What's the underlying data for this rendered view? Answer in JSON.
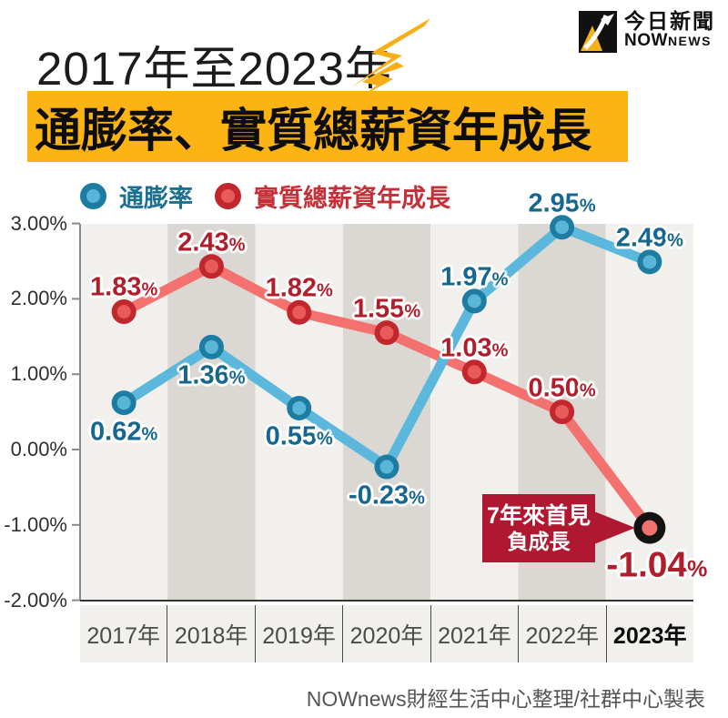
{
  "header": {
    "period_title": "2017年至2023年",
    "main_title": "通膨率、實質總薪資年成長",
    "highlight_color": "#FBB414",
    "lightning_color": "#F9AE17",
    "logo": {
      "cn": "今日新聞",
      "en_main": "NOW",
      "en_sub": "NEWS"
    }
  },
  "legend": {
    "items": [
      {
        "label": "通膨率",
        "ring": "#1D7CA2",
        "fill": "#5AB5D6",
        "text_color": "#1B7090"
      },
      {
        "label": "實質總薪資年成長",
        "ring": "#C2272E",
        "fill": "#E85B59",
        "text_color": "#C53038"
      }
    ]
  },
  "chart_data": {
    "type": "line",
    "title": "2017年至2023年 通膨率、實質總薪資年成長",
    "categories": [
      "2017年",
      "2018年",
      "2019年",
      "2020年",
      "2021年",
      "2022年",
      "2023年"
    ],
    "last_category_bold": true,
    "series": [
      {
        "name": "實質總薪資年成長",
        "values": [
          1.83,
          2.43,
          1.82,
          1.55,
          1.03,
          0.5,
          -1.04
        ],
        "labels": [
          "1.83%",
          "2.43%",
          "1.82%",
          "1.55%",
          "1.03%",
          "0.50%",
          "-1.04%"
        ],
        "label_side": [
          "above",
          "above",
          "above",
          "above",
          "above",
          "above",
          "below-big"
        ],
        "line_color": "#F3716F",
        "ring_color": "#C2272E",
        "dot_fill": "#E85B59",
        "label_color": "#B01E2B",
        "highlight_last": {
          "ring": "#131313",
          "fill": "#F0716E"
        }
      },
      {
        "name": "通膨率",
        "values": [
          0.62,
          1.36,
          0.55,
          -0.23,
          1.97,
          2.95,
          2.49
        ],
        "labels": [
          "0.62%",
          "1.36%",
          "0.55%",
          "-0.23%",
          "1.97%",
          "2.95%",
          "2.49%"
        ],
        "label_side": [
          "below",
          "below",
          "below",
          "below",
          "above",
          "above",
          "above"
        ],
        "line_color": "#5BB8DC",
        "ring_color": "#1D7CA2",
        "dot_fill": "#5AB5D6",
        "label_color": "#16678E"
      }
    ],
    "y_axis": {
      "ylim": [
        -2,
        3
      ],
      "ticks": [
        {
          "v": 3,
          "label": "3.00%"
        },
        {
          "v": 2,
          "label": "2.00%"
        },
        {
          "v": 1,
          "label": "1.00%"
        },
        {
          "v": 0,
          "label": "0.00%"
        },
        {
          "v": -1,
          "label": "-1.00%"
        },
        {
          "v": -2,
          "label": "-2.00%"
        }
      ]
    },
    "stripes": {
      "light": "#F2F0ED",
      "dark": "#DBD7D2"
    },
    "grid": false,
    "legend_position": "top-left"
  },
  "annotation": {
    "line1": "7年來首見",
    "line2": "負成長",
    "bg_color": "#B01730",
    "text_color": "#ffffff"
  },
  "footer": {
    "credit": "NOWnews財經生活中心整理/社群中心製表"
  }
}
